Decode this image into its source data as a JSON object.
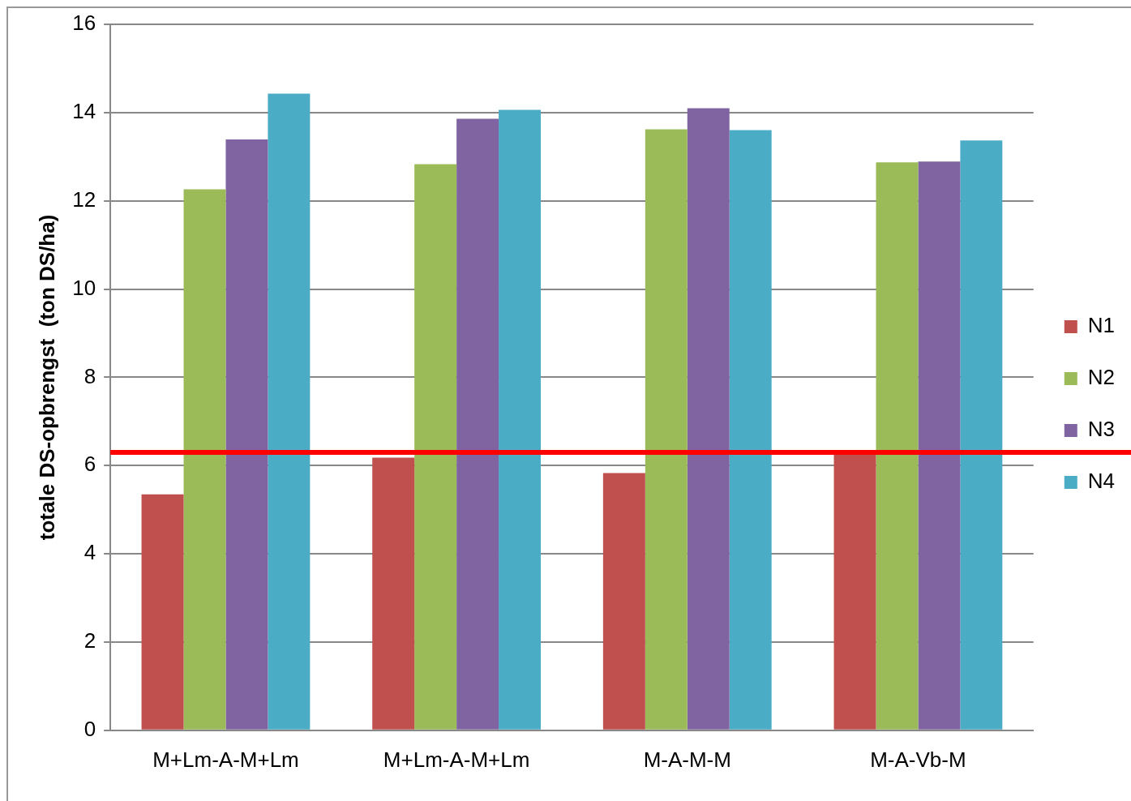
{
  "chart_data": {
    "type": "bar",
    "ylabel": "totale DS-opbrengst  (ton DS/ha)",
    "categories": [
      "M+Lm-A-M+Lm",
      "M+Lm-A-M+Lm",
      "M-A-M-M",
      "M-A-Vb-M"
    ],
    "series": [
      {
        "name": "N1",
        "color": "#c0504d",
        "values": [
          5.35,
          6.18,
          5.83,
          6.3
        ]
      },
      {
        "name": "N2",
        "color": "#9bbb59",
        "values": [
          12.26,
          12.83,
          13.62,
          12.87
        ]
      },
      {
        "name": "N3",
        "color": "#8064a2",
        "values": [
          13.39,
          13.86,
          14.1,
          12.89
        ]
      },
      {
        "name": "N4",
        "color": "#4bacc6",
        "values": [
          14.43,
          14.06,
          13.6,
          13.37
        ]
      }
    ],
    "ylim": [
      0,
      16
    ],
    "yticks": [
      0,
      2,
      4,
      6,
      8,
      10,
      12,
      14,
      16
    ],
    "grid": "y",
    "legend": "right",
    "ref_lines": [
      {
        "axis": "y",
        "value": 6.3,
        "color": "#ff0000"
      }
    ]
  }
}
